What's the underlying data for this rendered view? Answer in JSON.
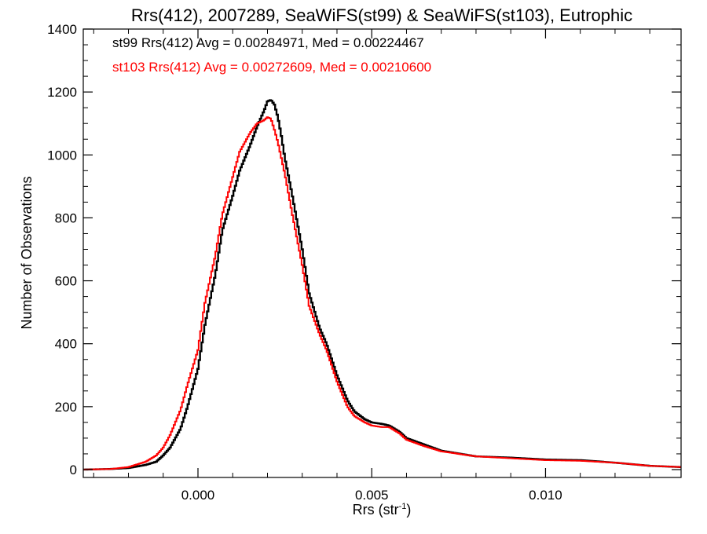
{
  "chart_data": {
    "type": "line",
    "title": "Rrs(412), 2007289, SeaWiFS(st99) & SeaWiFS(st103), Eutrophic",
    "xlabel_main": "Rrs (str",
    "xlabel_sup": "-1",
    "xlabel_close": ")",
    "ylabel": "Number of Observations",
    "xlim": [
      -0.0033,
      0.0139
    ],
    "ylim": [
      -25,
      1400
    ],
    "xticks": [
      0.0,
      0.005,
      0.01
    ],
    "xtick_labels": [
      "0.000",
      "0.005",
      "0.010"
    ],
    "yticks": [
      0,
      200,
      400,
      600,
      800,
      1000,
      1200,
      1400
    ],
    "ytick_labels": [
      "0",
      "200",
      "400",
      "600",
      "800",
      "1000",
      "1200",
      "1400"
    ],
    "legend_position": "top-left",
    "annotations": [
      "st99 Rrs(412) Avg = 0.00284971, Med = 0.00224467",
      "st103 Rrs(412) Avg = 0.00272609, Med = 0.00210600"
    ],
    "series": [
      {
        "name": "st99",
        "color": "#000000",
        "x": [
          -0.0033,
          -0.0025,
          -0.002,
          -0.0015,
          -0.0012,
          -0.001,
          -0.0008,
          -0.0005,
          -0.0003,
          0.0,
          0.0002,
          0.0005,
          0.0007,
          0.001,
          0.0012,
          0.0015,
          0.0017,
          0.0019,
          0.002,
          0.0021,
          0.0022,
          0.0023,
          0.0024,
          0.0025,
          0.0027,
          0.003,
          0.0032,
          0.0035,
          0.0037,
          0.004,
          0.0043,
          0.0045,
          0.0048,
          0.005,
          0.0053,
          0.0055,
          0.0058,
          0.006,
          0.0065,
          0.007,
          0.008,
          0.009,
          0.01,
          0.011,
          0.012,
          0.013,
          0.0139
        ],
        "y": [
          0,
          2,
          5,
          15,
          25,
          45,
          70,
          130,
          200,
          320,
          460,
          620,
          760,
          870,
          950,
          1030,
          1090,
          1140,
          1170,
          1175,
          1160,
          1120,
          1060,
          990,
          880,
          700,
          560,
          450,
          400,
          300,
          220,
          185,
          160,
          150,
          145,
          140,
          120,
          100,
          80,
          60,
          42,
          38,
          32,
          30,
          22,
          12,
          8
        ]
      },
      {
        "name": "st103",
        "color": "#ff0000",
        "x": [
          -0.0033,
          -0.0025,
          -0.002,
          -0.0015,
          -0.0012,
          -0.001,
          -0.0008,
          -0.0005,
          -0.0003,
          0.0,
          0.0002,
          0.0005,
          0.0007,
          0.001,
          0.0012,
          0.0015,
          0.0017,
          0.0019,
          0.002,
          0.0021,
          0.0022,
          0.0023,
          0.0024,
          0.0025,
          0.0027,
          0.003,
          0.0032,
          0.0035,
          0.0037,
          0.004,
          0.0043,
          0.0045,
          0.0048,
          0.005,
          0.0053,
          0.0055,
          0.0058,
          0.006,
          0.0065,
          0.007,
          0.008,
          0.009,
          0.01,
          0.011,
          0.012,
          0.013,
          0.0139
        ],
        "y": [
          0,
          2,
          8,
          25,
          45,
          70,
          110,
          190,
          270,
          380,
          530,
          680,
          810,
          930,
          1010,
          1070,
          1100,
          1110,
          1120,
          1115,
          1080,
          1040,
          990,
          940,
          820,
          650,
          520,
          430,
          380,
          280,
          200,
          170,
          150,
          140,
          135,
          135,
          115,
          95,
          75,
          58,
          42,
          36,
          30,
          28,
          22,
          12,
          8
        ]
      }
    ]
  }
}
